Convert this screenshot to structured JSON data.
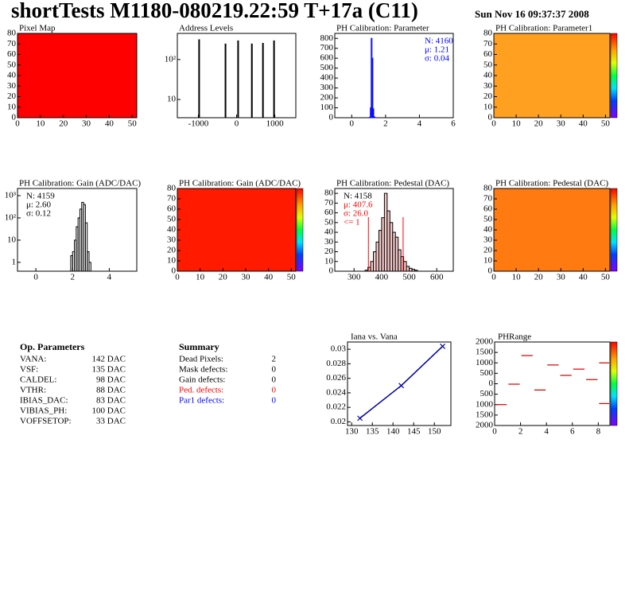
{
  "header": {
    "title": "shortTests M1180-080219.22:59 T+17a (C11)",
    "date": "Sun Nov 16 09:37:37 2008"
  },
  "chart_data": [
    {
      "type": "heatmap",
      "title": "Pixel Map",
      "color": "#ff0000",
      "xlim": [
        0,
        52
      ],
      "ylim": [
        0,
        80
      ],
      "xticks": [
        0,
        10,
        20,
        30,
        40,
        50
      ],
      "yticks": [
        0,
        10,
        20,
        30,
        40,
        50,
        60,
        70,
        80
      ]
    },
    {
      "type": "bar",
      "title": "Address Levels",
      "log_y": true,
      "color": "#000000",
      "x": [
        -980,
        -290,
        40,
        400,
        690,
        980
      ],
      "values": [
        320,
        250,
        300,
        250,
        260,
        300
      ],
      "xlim": [
        -1550,
        1550
      ],
      "ylim": [
        3.5,
        450
      ],
      "xticks": [
        -1000,
        0,
        1000
      ],
      "yticks": [
        10,
        {
          "value": 100,
          "label": "10²"
        }
      ]
    },
    {
      "type": "histogram",
      "title": "PH Calibration: Parameter",
      "color": "#0000ff",
      "bins": [
        1.05,
        1.1,
        1.15,
        1.2,
        1.25,
        1.3,
        1.35,
        1.4
      ],
      "values": [
        5,
        100,
        800,
        600,
        90,
        10,
        2
      ],
      "xlim": [
        -1,
        6
      ],
      "ylim": [
        0,
        850
      ],
      "xticks": [
        0,
        2,
        4,
        6
      ],
      "yticks": [
        0,
        100,
        200,
        300,
        400,
        500,
        600,
        700,
        800
      ],
      "stats_corner": "right",
      "stats": [
        {
          "text": "N: 4160",
          "color": "#0000ff"
        },
        {
          "text": "μ: 1.21",
          "color": "#0000ff"
        },
        {
          "text": "σ: 0.04",
          "color": "#0000ff"
        }
      ]
    },
    {
      "type": "heatmap",
      "title": "PH Calibration: Parameter1",
      "color": "#ffa020",
      "colorbar": true,
      "xlim": [
        0,
        52
      ],
      "ylim": [
        0,
        80
      ],
      "xticks": [
        0,
        10,
        20,
        30,
        40,
        50
      ],
      "yticks": [
        0,
        10,
        20,
        30,
        40,
        50,
        60,
        70,
        80
      ]
    },
    {
      "type": "histogram",
      "title": "PH Calibration: Gain (ADC/DAC)",
      "log_y": true,
      "color": "#000000",
      "bins": [
        1.9,
        2.0,
        2.1,
        2.2,
        2.3,
        2.4,
        2.5,
        2.6,
        2.7,
        2.8,
        2.9,
        3.0
      ],
      "values": [
        2,
        3,
        10,
        40,
        100,
        250,
        500,
        400,
        60,
        3,
        1
      ],
      "xlim": [
        -1,
        5.5
      ],
      "ylim": [
        0.4,
        2100
      ],
      "xticks": [
        0,
        2,
        4
      ],
      "yticks": [
        1,
        10,
        {
          "value": 100,
          "label": "10²"
        },
        {
          "value": 1000,
          "label": "10³"
        }
      ],
      "stats_corner": "left",
      "stats": [
        {
          "text": "N: 4159",
          "color": "#000000"
        },
        {
          "text": "μ: 2.60",
          "color": "#000000"
        },
        {
          "text": "σ: 0.12",
          "color": "#000000"
        }
      ]
    },
    {
      "type": "heatmap",
      "title": "PH Calibration: Gain (ADC/DAC)",
      "color": "#ff1a00",
      "colorbar": true,
      "xlim": [
        0,
        52
      ],
      "ylim": [
        0,
        80
      ],
      "xticks": [
        0,
        10,
        20,
        30,
        40,
        50
      ],
      "yticks": [
        0,
        10,
        20,
        30,
        40,
        50,
        60,
        70,
        80
      ]
    },
    {
      "type": "histogram",
      "title": "PH Calibration: Pedestal (DAC)",
      "color": "#000000",
      "fill": "#f4c8c8",
      "bins": [
        340,
        350,
        360,
        370,
        380,
        390,
        400,
        410,
        420,
        430,
        440,
        450,
        460,
        470,
        480,
        490,
        500,
        510,
        520,
        530
      ],
      "values": [
        1,
        4,
        10,
        20,
        30,
        42,
        55,
        80,
        62,
        50,
        40,
        35,
        22,
        15,
        10,
        5,
        3,
        2,
        1
      ],
      "markers": [
        352,
        478
      ],
      "marker_color": "#ff0000",
      "xlim": [
        230,
        660
      ],
      "ylim": [
        0,
        85
      ],
      "xticks": [
        300,
        400,
        500,
        600
      ],
      "yticks": [
        0,
        10,
        20,
        30,
        40,
        50,
        60,
        70,
        80
      ],
      "stats_corner": "left",
      "stats": [
        {
          "text": "N: 4158",
          "color": "#000000"
        },
        {
          "text": "μ: 407.6",
          "color": "#ff0000"
        },
        {
          "text": "σ: 26.0",
          "color": "#ff0000"
        },
        {
          "text": "<= 1",
          "color": "#ff0000"
        }
      ]
    },
    {
      "type": "heatmap",
      "title": "PH Calibration: Pedestal (DAC)",
      "color": "#ff7a10",
      "colorbar": true,
      "xlim": [
        0,
        52
      ],
      "ylim": [
        0,
        80
      ],
      "xticks": [
        0,
        10,
        20,
        30,
        40,
        50
      ],
      "yticks": [
        0,
        10,
        20,
        30,
        40,
        50,
        60,
        70,
        80
      ]
    },
    {
      "type": "line",
      "title": "Iana vs. Vana",
      "color": "#0000a0",
      "x": [
        132,
        142,
        152
      ],
      "values": [
        0.0205,
        0.025,
        0.0304
      ],
      "xlim": [
        129,
        154
      ],
      "ylim": [
        0.0195,
        0.031
      ],
      "xticks": [
        130,
        135,
        140,
        145,
        150
      ],
      "yticks": [
        0.02,
        0.022,
        0.024,
        0.026,
        0.028,
        0.03
      ]
    },
    {
      "type": "segments",
      "title": "PHRange",
      "color": "#cc0000",
      "colorbar": true,
      "x": [
        0,
        1,
        2,
        3,
        4,
        5,
        6,
        7,
        8,
        8
      ],
      "values": [
        -1000,
        -20,
        1350,
        -300,
        900,
        400,
        700,
        200,
        1000,
        -950
      ],
      "xlim": [
        0,
        8.9
      ],
      "ylim": [
        -2000,
        2000
      ],
      "xticks": [
        0,
        2,
        4,
        6,
        8
      ],
      "yticks": [
        {
          "value": -2000,
          "label": "2000"
        },
        {
          "value": -1500,
          "label": "1500"
        },
        {
          "value": -1000,
          "label": "1000"
        },
        {
          "value": -500,
          "label": "500"
        },
        0,
        500,
        1000,
        1500,
        2000
      ]
    }
  ],
  "op_parameters": {
    "title": "Op. Parameters",
    "rows": [
      [
        "VANA:",
        "142 DAC"
      ],
      [
        "VSF:",
        "135 DAC"
      ],
      [
        "CALDEL:",
        "98 DAC"
      ],
      [
        "VTHR:",
        "88 DAC"
      ],
      [
        "IBIAS_DAC:",
        "83 DAC"
      ],
      [
        "VIBIAS_PH:",
        "100 DAC"
      ],
      [
        "VOFFSETOP:",
        "33 DAC"
      ]
    ]
  },
  "summary": {
    "title": "Summary",
    "rows": [
      {
        "label": "Dead Pixels:",
        "value": "2",
        "color": "#000000"
      },
      {
        "label": "Mask defects:",
        "value": "0",
        "color": "#000000"
      },
      {
        "label": "Gain defects:",
        "value": "0",
        "color": "#000000"
      },
      {
        "label": "Ped. defects:",
        "value": "0",
        "color": "#ff0000"
      },
      {
        "label": "Par1 defects:",
        "value": "0",
        "color": "#0000ff"
      }
    ]
  }
}
